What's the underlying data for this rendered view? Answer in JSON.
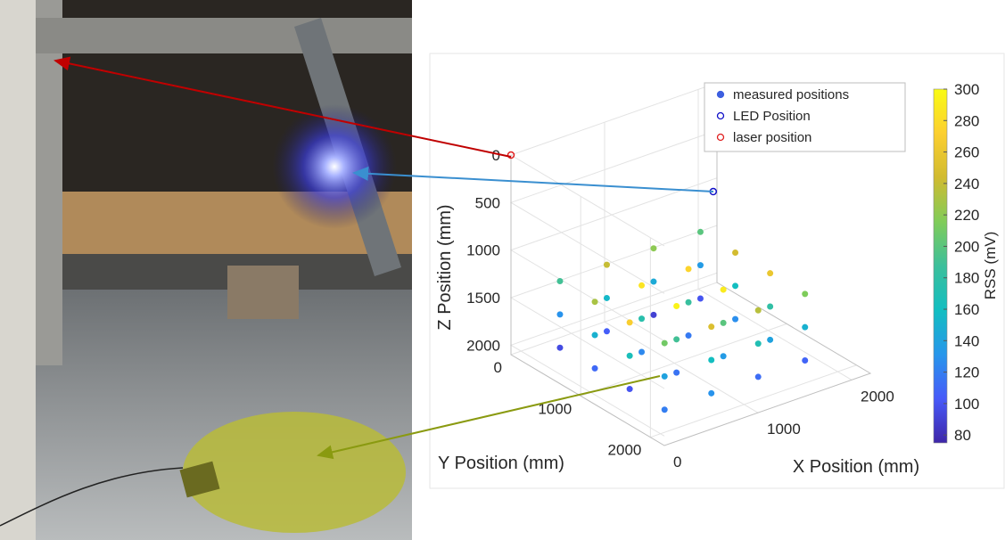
{
  "chart_data": {
    "type": "scatter3d",
    "xlabel": "X Position (mm)",
    "ylabel": "Y Position (mm)",
    "zlabel": "Z Position (mm)",
    "xlim": [
      0,
      2200
    ],
    "ylim": [
      0,
      2200
    ],
    "zlim": [
      0,
      2100
    ],
    "z_reversed": true,
    "xticks": [
      0,
      1000,
      2000
    ],
    "yticks": [
      0,
      1000,
      2000
    ],
    "zticks": [
      0,
      500,
      1000,
      1500,
      2000
    ],
    "grid": true,
    "series": [
      {
        "name": "measured positions",
        "color": "#3d5fe0",
        "marker": "filled",
        "x": [
          300,
          300,
          300,
          300,
          800,
          800,
          800,
          800,
          1300,
          1300,
          1300,
          1300,
          1800,
          1800,
          1800,
          1800,
          300,
          300,
          300,
          300,
          800,
          800,
          800,
          800,
          1300,
          1300,
          1300,
          1300,
          1800,
          1800,
          1800,
          1800,
          300,
          300,
          300,
          300,
          800,
          800,
          800,
          800,
          1300,
          1300,
          1300,
          1300,
          1800,
          1800,
          1800,
          1800
        ],
        "y": [
          300,
          800,
          1300,
          1800,
          300,
          800,
          1300,
          1800,
          300,
          800,
          1300,
          1800,
          300,
          800,
          1300,
          1800,
          300,
          800,
          1300,
          1800,
          300,
          800,
          1300,
          1800,
          300,
          800,
          1300,
          1800,
          300,
          800,
          1300,
          1800,
          300,
          800,
          1300,
          1800,
          300,
          800,
          1300,
          1800,
          300,
          800,
          1300,
          1800,
          300,
          800,
          1300,
          1800
        ],
        "z": [
          2000,
          2000,
          2000,
          2000,
          2000,
          2000,
          2000,
          2000,
          2000,
          2000,
          2000,
          2000,
          2000,
          2000,
          2000,
          2000,
          1650,
          1650,
          1650,
          1650,
          1650,
          1650,
          1650,
          1650,
          1650,
          1650,
          1650,
          1650,
          1650,
          1650,
          1650,
          1650,
          1300,
          1300,
          1300,
          1300,
          1300,
          1300,
          1300,
          1300,
          1300,
          1300,
          1300,
          1300,
          1300,
          1300,
          1300,
          1300
        ],
        "values": [
          95,
          110,
          100,
          120,
          105,
          125,
          115,
          130,
          90,
          118,
          135,
          112,
          100,
          128,
          140,
          108,
          130,
          150,
          165,
          140,
          155,
          175,
          190,
          160,
          145,
          185,
          200,
          170,
          135,
          160,
          180,
          150,
          190,
          230,
          270,
          210,
          240,
          285,
          295,
          250,
          220,
          275,
          290,
          235,
          200,
          245,
          260,
          215
        ]
      },
      {
        "name": "LED Position",
        "color": "#1010c8",
        "marker": "open",
        "x": [
          2160
        ],
        "y": [
          0
        ],
        "z": [
          1130
        ]
      },
      {
        "name": "laser position",
        "color": "#e02020",
        "marker": "open",
        "x": [
          0
        ],
        "y": [
          0
        ],
        "z": [
          0
        ]
      }
    ],
    "colorbar": {
      "label": "RSS (mV)",
      "colormap": "parula",
      "clim": [
        75,
        300
      ],
      "ticks": [
        80,
        100,
        120,
        140,
        160,
        180,
        200,
        220,
        240,
        260,
        280,
        300
      ]
    }
  }
}
